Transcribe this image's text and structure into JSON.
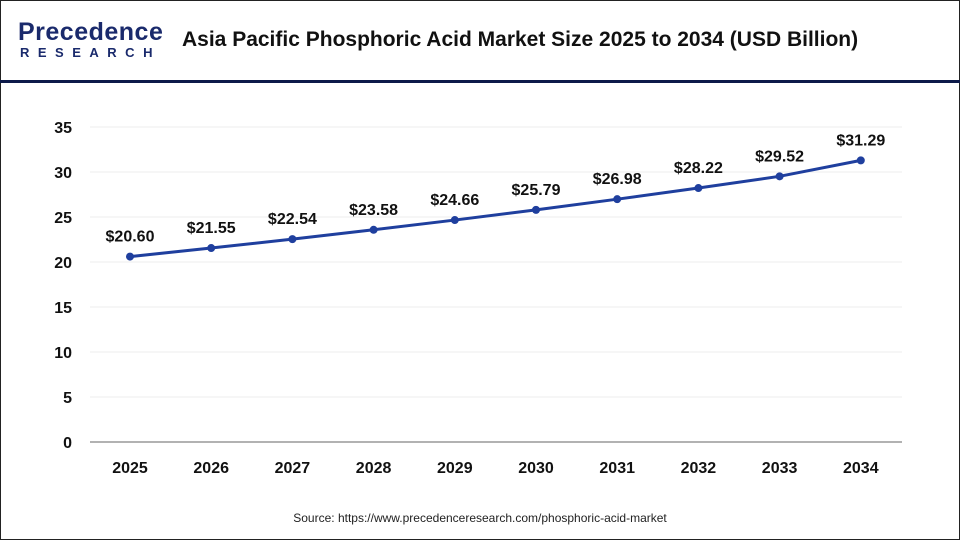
{
  "header": {
    "logo_text_top": "Precedence",
    "logo_text_bottom": "RESEARCH",
    "title": "Asia Pacific Phosphoric Acid Market Size 2025 to 2034 (USD Billion)"
  },
  "chart_data": {
    "type": "line",
    "title": "Asia Pacific Phosphoric Acid Market Size 2025 to 2034 (USD Billion)",
    "categories": [
      "2025",
      "2026",
      "2027",
      "2028",
      "2029",
      "2030",
      "2031",
      "2032",
      "2033",
      "2034"
    ],
    "values": [
      20.6,
      21.55,
      22.54,
      23.58,
      24.66,
      25.79,
      26.98,
      28.22,
      29.52,
      31.29
    ],
    "data_labels": [
      "$20.60",
      "$21.55",
      "$22.54",
      "$23.58",
      "$24.66",
      "$25.79",
      "$26.98",
      "$28.22",
      "$29.52",
      "$31.29"
    ],
    "ylim": [
      0,
      35
    ],
    "yticks": [
      "0",
      "5",
      "10",
      "15",
      "20",
      "25",
      "30",
      "35"
    ],
    "grid": true,
    "line_color": "#1f3f9e"
  },
  "source": "Source: https://www.precedenceresearch.com/phosphoric-acid-market"
}
